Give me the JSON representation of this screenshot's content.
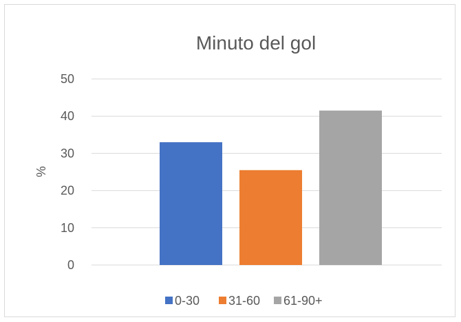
{
  "chart_data": {
    "type": "bar",
    "title": "Minuto del gol",
    "ylabel": "%",
    "xlabel": "",
    "ylim": [
      0,
      50
    ],
    "yticks": [
      0,
      10,
      20,
      30,
      40,
      50
    ],
    "grid": true,
    "legend_position": "bottom",
    "series": [
      {
        "name": "0-30",
        "value": 33,
        "color": "#4472C4"
      },
      {
        "name": "31-60",
        "value": 25.5,
        "color": "#ED7D31"
      },
      {
        "name": "61-90+",
        "value": 41.5,
        "color": "#A5A5A5"
      }
    ]
  }
}
